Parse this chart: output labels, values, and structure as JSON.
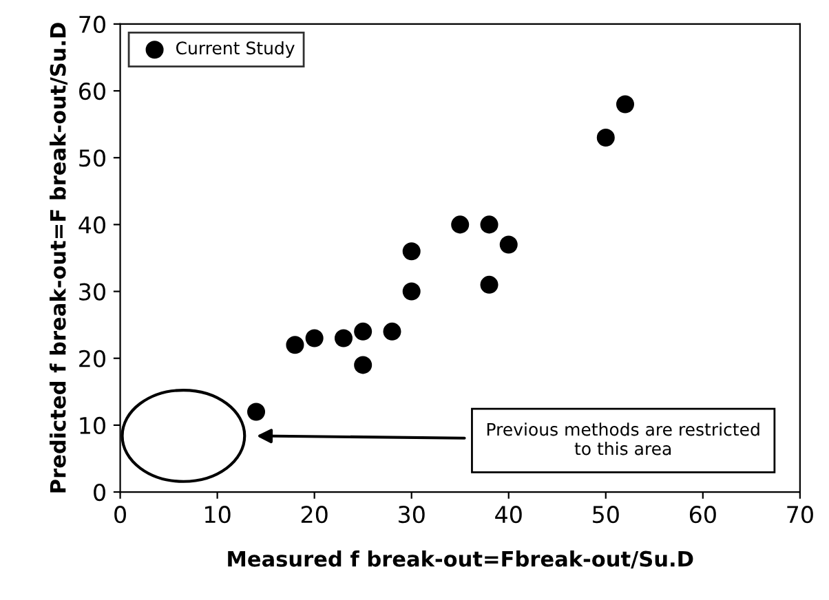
{
  "chart_data": {
    "type": "scatter",
    "xlabel": "Measured f break-out=Fbreak-out/Su.D",
    "ylabel": "Predicted f break-out=F break-out/Su.D",
    "series": [
      {
        "name": "Current Study",
        "color": "#000000",
        "x": [
          14,
          18,
          20,
          23,
          25,
          25,
          28,
          30,
          30,
          35,
          38,
          38,
          40,
          50,
          52
        ],
        "values": [
          12,
          22,
          23,
          23,
          24,
          19,
          24,
          36,
          30,
          40,
          40,
          31,
          37,
          53,
          58
        ]
      }
    ],
    "annotations": [
      "Previous methods are restricted\nto this area"
    ],
    "xlim": [
      0,
      70
    ],
    "ylim": [
      0,
      70
    ],
    "xticks": [
      0,
      10,
      20,
      30,
      40,
      50,
      60,
      {
        "value": 70,
        "label": "70"
      }
    ],
    "yticks": [
      0,
      10,
      20,
      30,
      40,
      50,
      60,
      70
    ],
    "grid": false,
    "legend": "top left",
    "marker": "circle"
  }
}
